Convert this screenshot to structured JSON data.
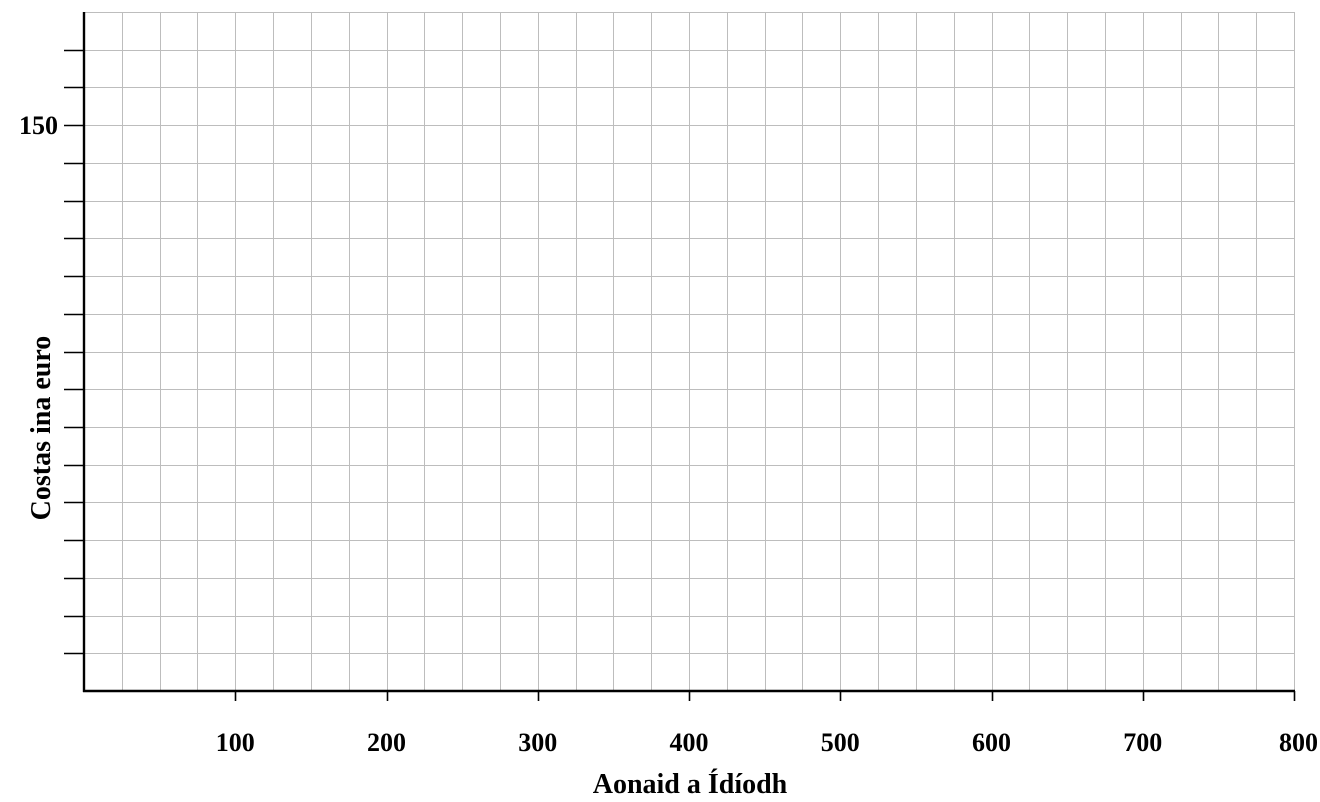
{
  "chart_data": {
    "type": "line",
    "title": "",
    "xlabel": "Aonaid a Ídíodh",
    "ylabel": "Costas ina euro",
    "xlim": [
      0,
      800
    ],
    "ylim": [
      0,
      180
    ],
    "x_minor_step": 25,
    "y_minor_step": 10,
    "x_tick_labels": [
      {
        "value": 100,
        "label": "100"
      },
      {
        "value": 200,
        "label": "200"
      },
      {
        "value": 300,
        "label": "300"
      },
      {
        "value": 400,
        "label": "400"
      },
      {
        "value": 500,
        "label": "500"
      },
      {
        "value": 600,
        "label": "600"
      },
      {
        "value": 700,
        "label": "700"
      },
      {
        "value": 800,
        "label": "800"
      }
    ],
    "y_tick_labels": [
      {
        "value": 150,
        "label": "150"
      }
    ],
    "y_minor_ticks": [
      10,
      20,
      30,
      40,
      50,
      60,
      70,
      80,
      90,
      100,
      110,
      120,
      130,
      140,
      160,
      170
    ],
    "grid": true,
    "series": []
  }
}
